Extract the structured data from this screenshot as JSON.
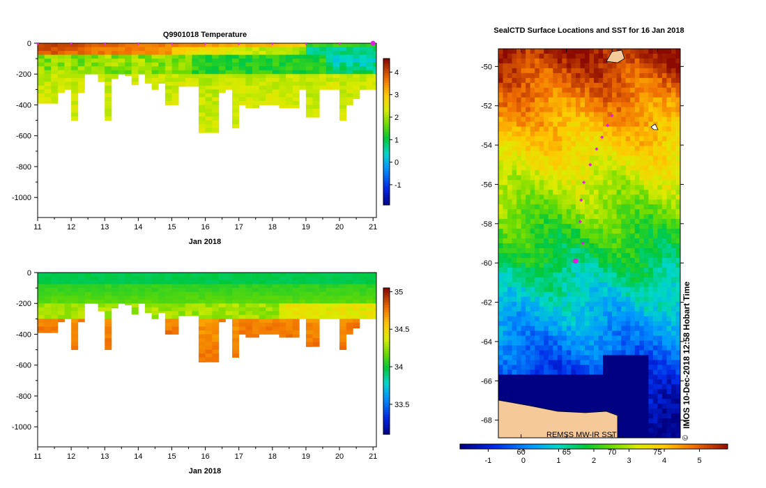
{
  "chart_data": [
    {
      "type": "heatmap",
      "title": "Q9901018  Temperature",
      "xlabel": "Jan 2018",
      "ylabel": "",
      "xlim": [
        11,
        21.1
      ],
      "ylim": [
        -1130,
        0
      ],
      "xticks": [
        "11",
        "12",
        "13",
        "14",
        "15",
        "16",
        "17",
        "18",
        "19",
        "20",
        "21"
      ],
      "yticks": [
        "0",
        "-200",
        "-400",
        "-600",
        "-800",
        "-1000"
      ],
      "colorbar": {
        "min": -1.9,
        "max": 4.6,
        "ticks": [
          "-1",
          "0",
          "1",
          "2",
          "3",
          "4"
        ]
      },
      "profile_times": [
        11.0,
        11.2,
        11.4,
        11.6,
        11.8,
        12.0,
        12.2,
        12.4,
        12.6,
        12.8,
        13.0,
        13.2,
        13.4,
        13.6,
        13.8,
        14.0,
        14.2,
        14.4,
        14.6,
        14.8,
        15.0,
        15.2,
        15.4,
        15.6,
        15.8,
        16.0,
        16.2,
        16.4,
        16.6,
        16.8,
        17.0,
        17.2,
        17.4,
        17.6,
        17.8,
        18.0,
        18.2,
        18.4,
        18.6,
        18.8,
        19.0,
        19.2,
        19.4,
        19.6,
        19.8,
        20.0,
        20.2,
        20.4,
        20.6,
        20.8,
        21.0
      ],
      "profile_depths": [
        390,
        390,
        390,
        320,
        300,
        500,
        320,
        200,
        200,
        250,
        500,
        230,
        200,
        210,
        270,
        200,
        260,
        300,
        260,
        400,
        400,
        280,
        280,
        280,
        580,
        580,
        580,
        320,
        300,
        550,
        400,
        420,
        420,
        400,
        400,
        400,
        420,
        420,
        420,
        300,
        480,
        480,
        300,
        300,
        300,
        500,
        400,
        360,
        300,
        300,
        300
      ],
      "surface_markers": [
        11.0,
        12.0,
        13.0,
        14.0,
        15.0,
        16.0,
        17.0,
        18.0,
        19.0,
        20.0,
        21.0
      ],
      "current_marker": 21.0
    },
    {
      "type": "heatmap",
      "title": "",
      "xlabel": "Jan 2018",
      "ylabel": "",
      "xlim": [
        11,
        21.1
      ],
      "ylim": [
        -1130,
        0
      ],
      "xticks": [
        "11",
        "12",
        "13",
        "14",
        "15",
        "16",
        "17",
        "18",
        "19",
        "20",
        "21"
      ],
      "yticks": [
        "0",
        "-200",
        "-400",
        "-600",
        "-800",
        "-1000"
      ],
      "colorbar": {
        "min": 33.1,
        "max": 35.05,
        "ticks": [
          "33.5",
          "34",
          "34.5",
          "35"
        ]
      }
    },
    {
      "type": "heatmap",
      "title": "SealCTD Surface Locations and SST for 16 Jan 2018",
      "xlabel": "",
      "ylabel": "",
      "xlim": [
        57.5,
        77.5
      ],
      "ylim": [
        -68.9,
        -49.1
      ],
      "xticks": [
        "60",
        "65",
        "70",
        "75"
      ],
      "yticks": [
        "-50",
        "-52",
        "-54",
        "-56",
        "-58",
        "-60",
        "-62",
        "-64",
        "-66",
        "-68"
      ],
      "colorbar": {
        "min": -1.8,
        "max": 5.8,
        "ticks": [
          "-1",
          "0",
          "1",
          "2",
          "3",
          "4",
          "5"
        ]
      },
      "track": [
        {
          "lon": 70.0,
          "lat": -52.5
        },
        {
          "lon": 69.5,
          "lat": -53.0
        },
        {
          "lon": 68.9,
          "lat": -53.6
        },
        {
          "lon": 68.3,
          "lat": -54.2
        },
        {
          "lon": 67.6,
          "lat": -55.0
        },
        {
          "lon": 66.9,
          "lat": -55.9
        },
        {
          "lon": 66.6,
          "lat": -56.8
        },
        {
          "lon": 66.5,
          "lat": -57.9
        },
        {
          "lon": 66.8,
          "lat": -59.0
        }
      ],
      "last_position": {
        "lon": 66.0,
        "lat": -59.9
      },
      "source_label": "REMSS MW-IR SST ...",
      "copyright": "©",
      "side_label": "IMOS 10-Dec-2018 12:58 Hobart Time"
    }
  ]
}
